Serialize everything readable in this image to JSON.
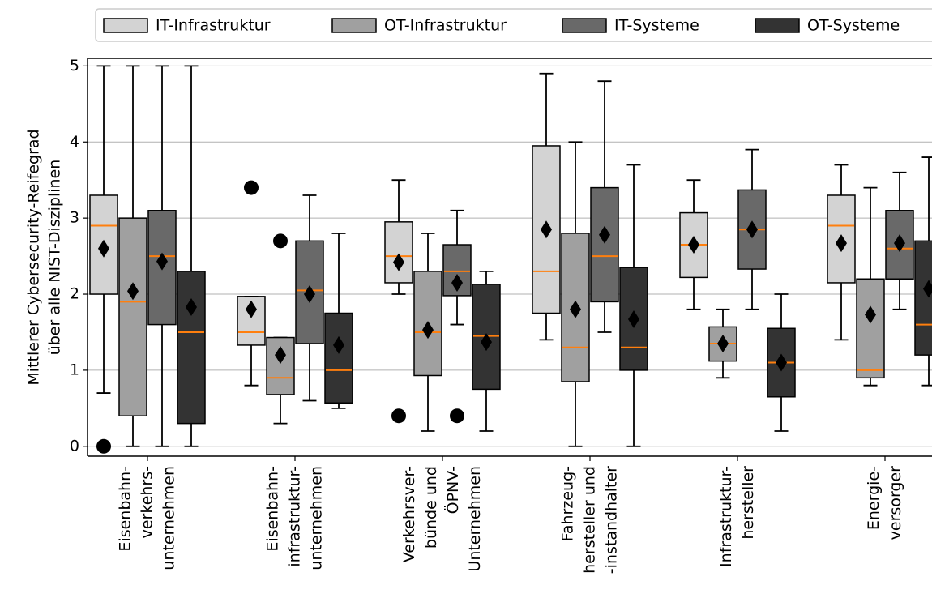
{
  "chart_data": {
    "type": "box",
    "ylabel": [
      "Mittlerer Cybersecurity-Reifegrad",
      "über alle NIST-Disziplinen"
    ],
    "categories": [
      [
        "Eisenbahn-",
        "verkehrs-",
        "unternehmen"
      ],
      [
        "Eisenbahn-",
        "infrastruktur-",
        "unternehmen"
      ],
      [
        "Verkehrsver-",
        "bünde und",
        "ÖPNV-",
        "Unternehmen"
      ],
      [
        "Fahrzeug-",
        "hersteller und",
        "-instandhalter"
      ],
      [
        "Infrastruktur-",
        "hersteller"
      ],
      [
        "Energie-",
        "versorger"
      ]
    ],
    "ylim": [
      -0.13,
      5.1
    ],
    "yticks": [
      0,
      1,
      2,
      3,
      4,
      5
    ],
    "grid": true,
    "legend": "top",
    "median_color": "#ff7f0e",
    "series": [
      {
        "name": "IT-Infrastruktur",
        "color": "#d3d3d3",
        "boxes": [
          {
            "whislo": 0.7,
            "q1": 2.0,
            "med": 2.9,
            "q3": 3.3,
            "whishi": 5.0,
            "mean": 2.6,
            "fliers": [
              0
            ]
          },
          {
            "whislo": 0.8,
            "q1": 1.33,
            "med": 1.5,
            "q3": 1.97,
            "whishi": 1.97,
            "mean": 1.8,
            "fliers": [
              3.4
            ]
          },
          {
            "whislo": 2.0,
            "q1": 2.15,
            "med": 2.5,
            "q3": 2.95,
            "whishi": 3.5,
            "mean": 2.42,
            "fliers": [
              0.4
            ]
          },
          {
            "whislo": 1.4,
            "q1": 1.75,
            "med": 2.3,
            "q3": 3.95,
            "whishi": 4.9,
            "mean": 2.85
          },
          {
            "whislo": 1.8,
            "q1": 2.22,
            "med": 2.65,
            "q3": 3.07,
            "whishi": 3.5,
            "mean": 2.65
          },
          {
            "whislo": 1.4,
            "q1": 2.15,
            "med": 2.9,
            "q3": 3.3,
            "whishi": 3.7,
            "mean": 2.67
          }
        ]
      },
      {
        "name": "OT-Infrastruktur",
        "color": "#a0a0a0",
        "boxes": [
          {
            "whislo": 0,
            "q1": 0.4,
            "med": 1.9,
            "q3": 3.0,
            "whishi": 5.0,
            "mean": 2.04
          },
          {
            "whislo": 0.3,
            "q1": 0.68,
            "med": 0.9,
            "q3": 1.43,
            "whishi": 1.43,
            "mean": 1.2,
            "fliers": [
              2.7
            ]
          },
          {
            "whislo": 0.2,
            "q1": 0.93,
            "med": 1.5,
            "q3": 2.3,
            "whishi": 2.8,
            "mean": 1.53
          },
          {
            "whislo": 0,
            "q1": 0.85,
            "med": 1.3,
            "q3": 2.8,
            "whishi": 4.0,
            "mean": 1.8
          },
          {
            "whislo": 0.9,
            "q1": 1.12,
            "med": 1.35,
            "q3": 1.57,
            "whishi": 1.8,
            "mean": 1.35
          },
          {
            "whislo": 0.8,
            "q1": 0.9,
            "med": 1.0,
            "q3": 2.2,
            "whishi": 3.4,
            "mean": 1.73
          }
        ]
      },
      {
        "name": "IT-Systeme",
        "color": "#696969",
        "boxes": [
          {
            "whislo": 0,
            "q1": 1.6,
            "med": 2.5,
            "q3": 3.1,
            "whishi": 5.0,
            "mean": 2.43
          },
          {
            "whislo": 0.6,
            "q1": 1.35,
            "med": 2.05,
            "q3": 2.7,
            "whishi": 3.3,
            "mean": 2.0
          },
          {
            "whislo": 1.6,
            "q1": 1.98,
            "med": 2.3,
            "q3": 2.65,
            "whishi": 3.1,
            "mean": 2.15,
            "fliers": [
              0.4
            ]
          },
          {
            "whislo": 1.5,
            "q1": 1.9,
            "med": 2.5,
            "q3": 3.4,
            "whishi": 4.8,
            "mean": 2.78
          },
          {
            "whislo": 1.8,
            "q1": 2.33,
            "med": 2.85,
            "q3": 3.37,
            "whishi": 3.9,
            "mean": 2.85
          },
          {
            "whislo": 1.8,
            "q1": 2.2,
            "med": 2.6,
            "q3": 3.1,
            "whishi": 3.6,
            "mean": 2.67
          }
        ]
      },
      {
        "name": "OT-Systeme",
        "color": "#333333",
        "boxes": [
          {
            "whislo": 0,
            "q1": 0.3,
            "med": 1.5,
            "q3": 2.3,
            "whishi": 5.0,
            "mean": 1.83
          },
          {
            "whislo": 0.5,
            "q1": 0.57,
            "med": 1.0,
            "q3": 1.75,
            "whishi": 2.8,
            "mean": 1.33
          },
          {
            "whislo": 0.2,
            "q1": 0.75,
            "med": 1.45,
            "q3": 2.13,
            "whishi": 2.3,
            "mean": 1.37
          },
          {
            "whislo": 0,
            "q1": 1.0,
            "med": 1.3,
            "q3": 2.35,
            "whishi": 3.7,
            "mean": 1.67
          },
          {
            "whislo": 0.2,
            "q1": 0.65,
            "med": 1.1,
            "q3": 1.55,
            "whishi": 2.0,
            "mean": 1.1
          },
          {
            "whislo": 0.8,
            "q1": 1.2,
            "med": 1.6,
            "q3": 2.7,
            "whishi": 3.8,
            "mean": 2.07
          }
        ]
      }
    ]
  }
}
